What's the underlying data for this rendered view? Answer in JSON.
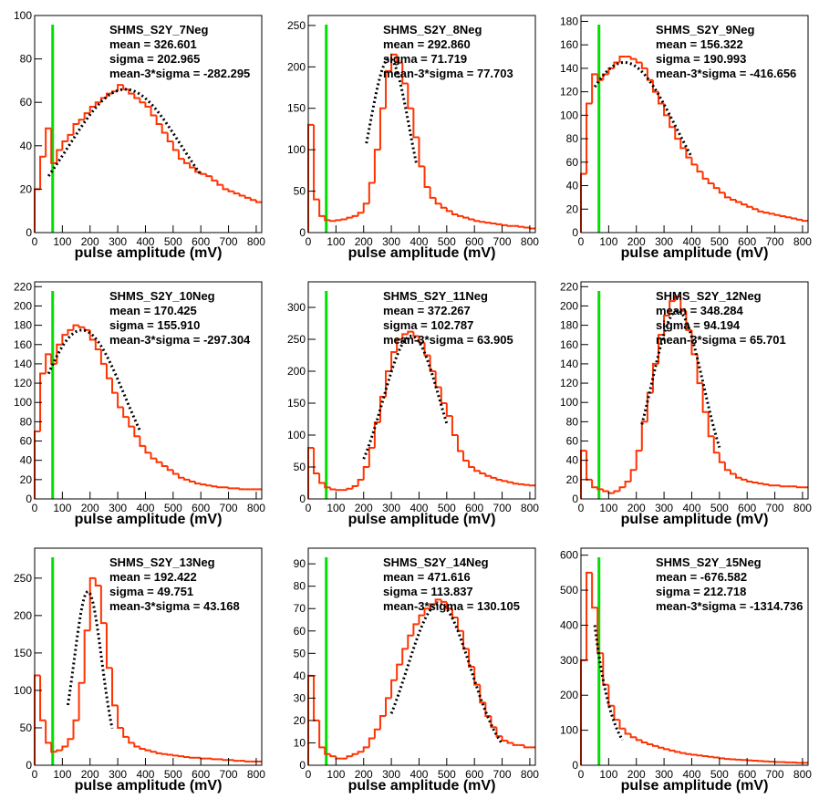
{
  "chart_data": [
    {
      "type": "histogram",
      "title": "SHMS_S2Y_7Neg",
      "stats": [
        "mean = 326.601",
        "sigma = 202.965",
        "mean-3*sigma = -282.295"
      ],
      "xlabel": "pulse amplitude (mV)",
      "bins": [
        0,
        20,
        40,
        60,
        80,
        100,
        120,
        140,
        160,
        180,
        200,
        220,
        240,
        260,
        280,
        300,
        320,
        340,
        360,
        380,
        400,
        420,
        440,
        460,
        480,
        500,
        520,
        540,
        560,
        580,
        600,
        620,
        640,
        660,
        680,
        700,
        720,
        740,
        760,
        780,
        800,
        820
      ],
      "values": [
        20,
        35,
        48,
        32,
        38,
        42,
        45,
        50,
        52,
        55,
        58,
        60,
        62,
        64,
        65,
        68,
        66,
        64,
        62,
        60,
        58,
        54,
        50,
        46,
        42,
        38,
        34,
        32,
        30,
        28,
        27,
        26,
        24,
        22,
        20,
        19,
        18,
        17,
        16,
        15,
        14
      ],
      "color": "#ff3300",
      "xlim": [
        0,
        820
      ],
      "xticks": [
        0,
        100,
        200,
        300,
        400,
        500,
        600,
        700,
        800
      ],
      "ylim": [
        0,
        100
      ],
      "yticks": [
        0,
        20,
        40,
        60,
        80,
        100
      ],
      "fit": {
        "amplitude": 66,
        "mean": 326.601,
        "sigma": 202.965,
        "range": [
          50,
          600
        ]
      },
      "fit_color": "#000000",
      "vline": 65,
      "vline_color": "#00e000"
    },
    {
      "type": "histogram",
      "title": "SHMS_S2Y_8Neg",
      "stats": [
        "mean = 292.860",
        "sigma = 71.719",
        "mean-3*sigma = 77.703"
      ],
      "xlabel": "pulse amplitude (mV)",
      "bins": [
        0,
        20,
        40,
        60,
        80,
        100,
        120,
        140,
        160,
        180,
        200,
        220,
        240,
        260,
        280,
        300,
        320,
        340,
        360,
        380,
        400,
        420,
        440,
        460,
        480,
        500,
        520,
        540,
        560,
        580,
        600,
        620,
        640,
        660,
        680,
        700,
        720,
        740,
        760,
        780,
        800,
        820
      ],
      "values": [
        130,
        40,
        20,
        15,
        14,
        15,
        16,
        18,
        20,
        24,
        35,
        60,
        100,
        150,
        195,
        215,
        205,
        180,
        150,
        115,
        80,
        55,
        42,
        35,
        30,
        26,
        22,
        20,
        18,
        16,
        14,
        13,
        12,
        11,
        10,
        9,
        8,
        8,
        7,
        6,
        5
      ],
      "color": "#ff3300",
      "xlim": [
        0,
        820
      ],
      "xticks": [
        0,
        100,
        200,
        300,
        400,
        500,
        600,
        700,
        800
      ],
      "ylim": [
        0,
        262
      ],
      "yticks": [
        0,
        50,
        100,
        150,
        200,
        250
      ],
      "fit": {
        "amplitude": 210,
        "mean": 292.86,
        "sigma": 71.719,
        "range": [
          210,
          390
        ]
      },
      "fit_color": "#000000",
      "vline": 65,
      "vline_color": "#00e000"
    },
    {
      "type": "histogram",
      "title": "SHMS_S2Y_9Neg",
      "stats": [
        "mean = 156.322",
        "sigma = 190.993",
        "mean-3*sigma = -416.656"
      ],
      "xlabel": "pulse amplitude (mV)",
      "bins": [
        0,
        20,
        40,
        60,
        80,
        100,
        120,
        140,
        160,
        180,
        200,
        220,
        240,
        260,
        280,
        300,
        320,
        340,
        360,
        380,
        400,
        420,
        440,
        460,
        480,
        500,
        520,
        540,
        560,
        580,
        600,
        620,
        640,
        660,
        680,
        700,
        720,
        740,
        760,
        780,
        800,
        820
      ],
      "values": [
        50,
        110,
        135,
        130,
        135,
        140,
        145,
        150,
        150,
        148,
        145,
        140,
        130,
        120,
        110,
        100,
        90,
        80,
        72,
        64,
        58,
        52,
        46,
        42,
        38,
        34,
        30,
        28,
        26,
        24,
        22,
        20,
        18,
        17,
        16,
        15,
        14,
        13,
        12,
        11,
        10
      ],
      "color": "#ff3300",
      "xlim": [
        0,
        820
      ],
      "xticks": [
        0,
        100,
        200,
        300,
        400,
        500,
        600,
        700,
        800
      ],
      "ylim": [
        0,
        185
      ],
      "yticks": [
        0,
        20,
        40,
        60,
        80,
        100,
        120,
        140,
        160,
        180
      ],
      "fit": {
        "amplitude": 145,
        "mean": 156.322,
        "sigma": 190.993,
        "range": [
          50,
          400
        ]
      },
      "fit_color": "#000000",
      "vline": 65,
      "vline_color": "#00e000"
    },
    {
      "type": "histogram",
      "title": "SHMS_S2Y_10Neg",
      "stats": [
        "mean = 170.425",
        "sigma = 155.910",
        "mean-3*sigma = -297.304"
      ],
      "xlabel": "pulse amplitude (mV)",
      "bins": [
        0,
        20,
        40,
        60,
        80,
        100,
        120,
        140,
        160,
        180,
        200,
        220,
        240,
        260,
        280,
        300,
        320,
        340,
        360,
        380,
        400,
        420,
        440,
        460,
        480,
        500,
        520,
        540,
        560,
        580,
        600,
        620,
        640,
        660,
        680,
        700,
        720,
        740,
        760,
        780,
        800,
        820
      ],
      "values": [
        70,
        130,
        150,
        140,
        160,
        170,
        175,
        180,
        178,
        175,
        165,
        155,
        140,
        125,
        110,
        95,
        85,
        75,
        65,
        55,
        48,
        42,
        38,
        34,
        30,
        26,
        22,
        20,
        18,
        16,
        15,
        14,
        13,
        12,
        12,
        11,
        11,
        10,
        10,
        10,
        10
      ],
      "color": "#ff3300",
      "xlim": [
        0,
        820
      ],
      "xticks": [
        0,
        100,
        200,
        300,
        400,
        500,
        600,
        700,
        800
      ],
      "ylim": [
        0,
        225
      ],
      "yticks": [
        0,
        20,
        40,
        60,
        80,
        100,
        120,
        140,
        160,
        180,
        200,
        220
      ],
      "fit": {
        "amplitude": 175,
        "mean": 170.425,
        "sigma": 155.91,
        "range": [
          50,
          380
        ]
      },
      "fit_color": "#000000",
      "vline": 65,
      "vline_color": "#00e000"
    },
    {
      "type": "histogram",
      "title": "SHMS_S2Y_11Neg",
      "stats": [
        "mean = 372.267",
        "sigma = 102.787",
        "mean-3*sigma = 63.905"
      ],
      "xlabel": "pulse amplitude (mV)",
      "bins": [
        0,
        20,
        40,
        60,
        80,
        100,
        120,
        140,
        160,
        180,
        200,
        220,
        240,
        260,
        280,
        300,
        320,
        340,
        360,
        380,
        400,
        420,
        440,
        460,
        480,
        500,
        520,
        540,
        560,
        580,
        600,
        620,
        640,
        660,
        680,
        700,
        720,
        740,
        760,
        780,
        800,
        820
      ],
      "values": [
        80,
        40,
        25,
        18,
        15,
        14,
        14,
        16,
        20,
        30,
        50,
        80,
        120,
        160,
        200,
        230,
        250,
        258,
        262,
        255,
        245,
        225,
        200,
        175,
        150,
        130,
        100,
        75,
        60,
        50,
        44,
        40,
        36,
        33,
        30,
        28,
        26,
        24,
        23,
        22,
        21
      ],
      "color": "#ff3300",
      "xlim": [
        0,
        820
      ],
      "xticks": [
        0,
        100,
        200,
        300,
        400,
        500,
        600,
        700,
        800
      ],
      "ylim": [
        0,
        340
      ],
      "yticks": [
        0,
        50,
        100,
        150,
        200,
        250,
        300
      ],
      "fit": {
        "amplitude": 255,
        "mean": 372.267,
        "sigma": 102.787,
        "range": [
          200,
          500
        ]
      },
      "fit_color": "#000000",
      "vline": 65,
      "vline_color": "#00e000"
    },
    {
      "type": "histogram",
      "title": "SHMS_S2Y_12Neg",
      "stats": [
        "mean = 348.284",
        "sigma = 94.194",
        "mean-3*sigma = 65.701"
      ],
      "xlabel": "pulse amplitude (mV)",
      "bins": [
        0,
        20,
        40,
        60,
        80,
        100,
        120,
        140,
        160,
        180,
        200,
        220,
        240,
        260,
        280,
        300,
        320,
        340,
        360,
        380,
        400,
        420,
        440,
        460,
        480,
        500,
        520,
        540,
        560,
        580,
        600,
        620,
        640,
        660,
        680,
        700,
        720,
        740,
        760,
        780,
        800,
        820
      ],
      "values": [
        50,
        20,
        12,
        10,
        8,
        6,
        8,
        12,
        18,
        30,
        50,
        80,
        110,
        140,
        170,
        190,
        205,
        210,
        195,
        175,
        150,
        120,
        90,
        65,
        48,
        38,
        30,
        26,
        22,
        20,
        18,
        17,
        16,
        15,
        14,
        14,
        13,
        13,
        13,
        12,
        12
      ],
      "color": "#ff3300",
      "xlim": [
        0,
        820
      ],
      "xticks": [
        0,
        100,
        200,
        300,
        400,
        500,
        600,
        700,
        800
      ],
      "ylim": [
        0,
        225
      ],
      "yticks": [
        0,
        20,
        40,
        60,
        80,
        100,
        120,
        140,
        160,
        180,
        200,
        220
      ],
      "fit": {
        "amplitude": 195,
        "mean": 348.284,
        "sigma": 94.194,
        "range": [
          220,
          500
        ]
      },
      "fit_color": "#000000",
      "vline": 65,
      "vline_color": "#00e000"
    },
    {
      "type": "histogram",
      "title": "SHMS_S2Y_13Neg",
      "stats": [
        "mean = 192.422",
        "sigma = 49.751",
        "mean-3*sigma = 43.168"
      ],
      "xlabel": "pulse amplitude (mV)",
      "bins": [
        0,
        20,
        40,
        60,
        80,
        100,
        120,
        140,
        160,
        180,
        200,
        220,
        240,
        260,
        280,
        300,
        320,
        340,
        360,
        380,
        400,
        420,
        440,
        460,
        480,
        500,
        520,
        540,
        560,
        580,
        600,
        620,
        640,
        660,
        680,
        700,
        720,
        740,
        760,
        780,
        800,
        820
      ],
      "values": [
        120,
        60,
        30,
        18,
        20,
        25,
        35,
        60,
        110,
        180,
        250,
        240,
        190,
        130,
        80,
        50,
        38,
        30,
        25,
        22,
        20,
        18,
        16,
        15,
        14,
        13,
        12,
        11,
        10,
        10,
        9,
        9,
        8,
        8,
        7,
        7,
        6,
        6,
        5,
        5,
        5
      ],
      "color": "#ff3300",
      "xlim": [
        0,
        820
      ],
      "xticks": [
        0,
        100,
        200,
        300,
        400,
        500,
        600,
        700,
        800
      ],
      "ylim": [
        0,
        290
      ],
      "yticks": [
        0,
        50,
        100,
        150,
        200,
        250
      ],
      "fit": {
        "amplitude": 232,
        "mean": 192.422,
        "sigma": 49.751,
        "range": [
          120,
          280
        ]
      },
      "fit_color": "#000000",
      "vline": 65,
      "vline_color": "#00e000"
    },
    {
      "type": "histogram",
      "title": "SHMS_S2Y_14Neg",
      "stats": [
        "mean = 471.616",
        "sigma = 113.837",
        "mean-3*sigma = 130.105"
      ],
      "xlabel": "pulse amplitude (mV)",
      "bins": [
        0,
        20,
        40,
        60,
        80,
        100,
        120,
        140,
        160,
        180,
        200,
        220,
        240,
        260,
        280,
        300,
        320,
        340,
        360,
        380,
        400,
        420,
        440,
        460,
        480,
        500,
        520,
        540,
        560,
        580,
        600,
        620,
        640,
        660,
        680,
        700,
        720,
        740,
        760,
        780,
        800,
        820
      ],
      "values": [
        40,
        20,
        8,
        5,
        4,
        3,
        3,
        4,
        5,
        6,
        8,
        12,
        16,
        22,
        30,
        38,
        45,
        52,
        58,
        63,
        67,
        70,
        72,
        74,
        73,
        70,
        66,
        60,
        52,
        44,
        36,
        28,
        22,
        17,
        13,
        11,
        10,
        9,
        9,
        8,
        8
      ],
      "color": "#ff3300",
      "xlim": [
        0,
        820
      ],
      "xticks": [
        0,
        100,
        200,
        300,
        400,
        500,
        600,
        700,
        800
      ],
      "ylim": [
        0,
        97
      ],
      "yticks": [
        0,
        10,
        20,
        30,
        40,
        50,
        60,
        70,
        80,
        90
      ],
      "fit": {
        "amplitude": 72,
        "mean": 471.616,
        "sigma": 113.837,
        "range": [
          300,
          700
        ]
      },
      "fit_color": "#000000",
      "vline": 65,
      "vline_color": "#00e000"
    },
    {
      "type": "histogram",
      "title": "SHMS_S2Y_15Neg",
      "stats": [
        "mean = -676.582",
        "sigma = 212.718",
        "mean-3*sigma = -1314.736"
      ],
      "xlabel": "pulse amplitude (mV)",
      "bins": [
        0,
        20,
        40,
        60,
        80,
        100,
        120,
        140,
        160,
        180,
        200,
        220,
        240,
        260,
        280,
        300,
        320,
        340,
        360,
        380,
        400,
        420,
        440,
        460,
        480,
        500,
        520,
        540,
        560,
        580,
        600,
        620,
        640,
        660,
        680,
        700,
        720,
        740,
        760,
        780,
        800,
        820
      ],
      "values": [
        300,
        550,
        450,
        320,
        230,
        170,
        130,
        105,
        90,
        80,
        72,
        65,
        60,
        55,
        50,
        46,
        42,
        38,
        35,
        32,
        30,
        28,
        26,
        24,
        22,
        20,
        18,
        17,
        16,
        15,
        14,
        13,
        12,
        11,
        10,
        9,
        9,
        8,
        8,
        7,
        7
      ],
      "color": "#ff3300",
      "xlim": [
        0,
        820
      ],
      "xticks": [
        0,
        100,
        200,
        300,
        400,
        500,
        600,
        700,
        800
      ],
      "ylim": [
        0,
        620
      ],
      "yticks": [
        0,
        100,
        200,
        300,
        400,
        500,
        600
      ],
      "fit": {
        "amplitude": 136600,
        "mean": -676.582,
        "sigma": 212.718,
        "range": [
          50,
          150
        ]
      },
      "fit_color": "#000000",
      "vline": 65,
      "vline_color": "#00e000"
    }
  ]
}
